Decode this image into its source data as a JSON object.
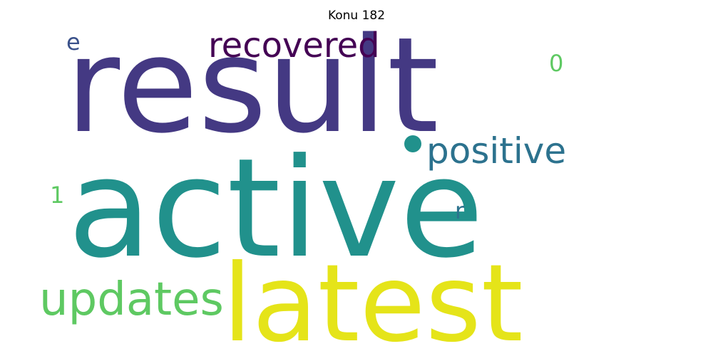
{
  "title": "Konu 182",
  "words": {
    "result": {
      "text": "result",
      "color": "#443983"
    },
    "active": {
      "text": "active",
      "color": "#21918c"
    },
    "latest": {
      "text": "latest",
      "color": "#e5e419"
    },
    "recovered": {
      "text": "recovered",
      "color": "#440154"
    },
    "positive": {
      "text": "positive",
      "color": "#2c728e"
    },
    "updates": {
      "text": "updates",
      "color": "#5ec962"
    },
    "e": {
      "text": "e",
      "color": "#3b528b"
    },
    "zero": {
      "text": "0",
      "color": "#5ec962"
    },
    "one": {
      "text": "1",
      "color": "#5ec962"
    },
    "r": {
      "text": "r",
      "color": "#2c728e"
    },
    "dot": {
      "text": "•",
      "color": "#21918c"
    }
  }
}
